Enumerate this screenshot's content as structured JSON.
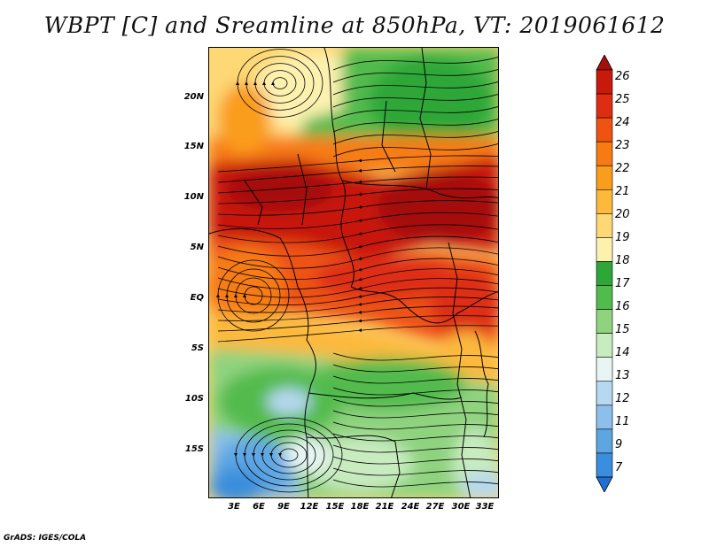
{
  "title": "WBPT [C] and Sreamline at 850hPa, VT: 2019061612",
  "footer": "GrADS: IGES/COLA",
  "lat_labels": [
    "20N",
    "15N",
    "10N",
    "5N",
    "EQ",
    "5S",
    "10S",
    "15S"
  ],
  "lon_labels": [
    "3E",
    "6E",
    "9E",
    "12E",
    "15E",
    "18E",
    "21E",
    "24E",
    "27E",
    "30E",
    "33E"
  ],
  "colorbar": {
    "labels": [
      "26",
      "25",
      "24",
      "23",
      "22",
      "21",
      "20",
      "19",
      "18",
      "17",
      "16",
      "15",
      "14",
      "13",
      "12",
      "11",
      "9",
      "7"
    ],
    "colors": [
      "#a50f0a",
      "#c8190c",
      "#de2d12",
      "#ee5312",
      "#f77b12",
      "#fa9c1c",
      "#fcb93c",
      "#fdd875",
      "#fdf1b0",
      "#2fa738",
      "#52bb4d",
      "#8fd37f",
      "#c8ebc0",
      "#e7f5f5",
      "#b6d8f1",
      "#8cc0ea",
      "#5ea6e2",
      "#3b8edd",
      "#1f6fd4"
    ]
  }
}
